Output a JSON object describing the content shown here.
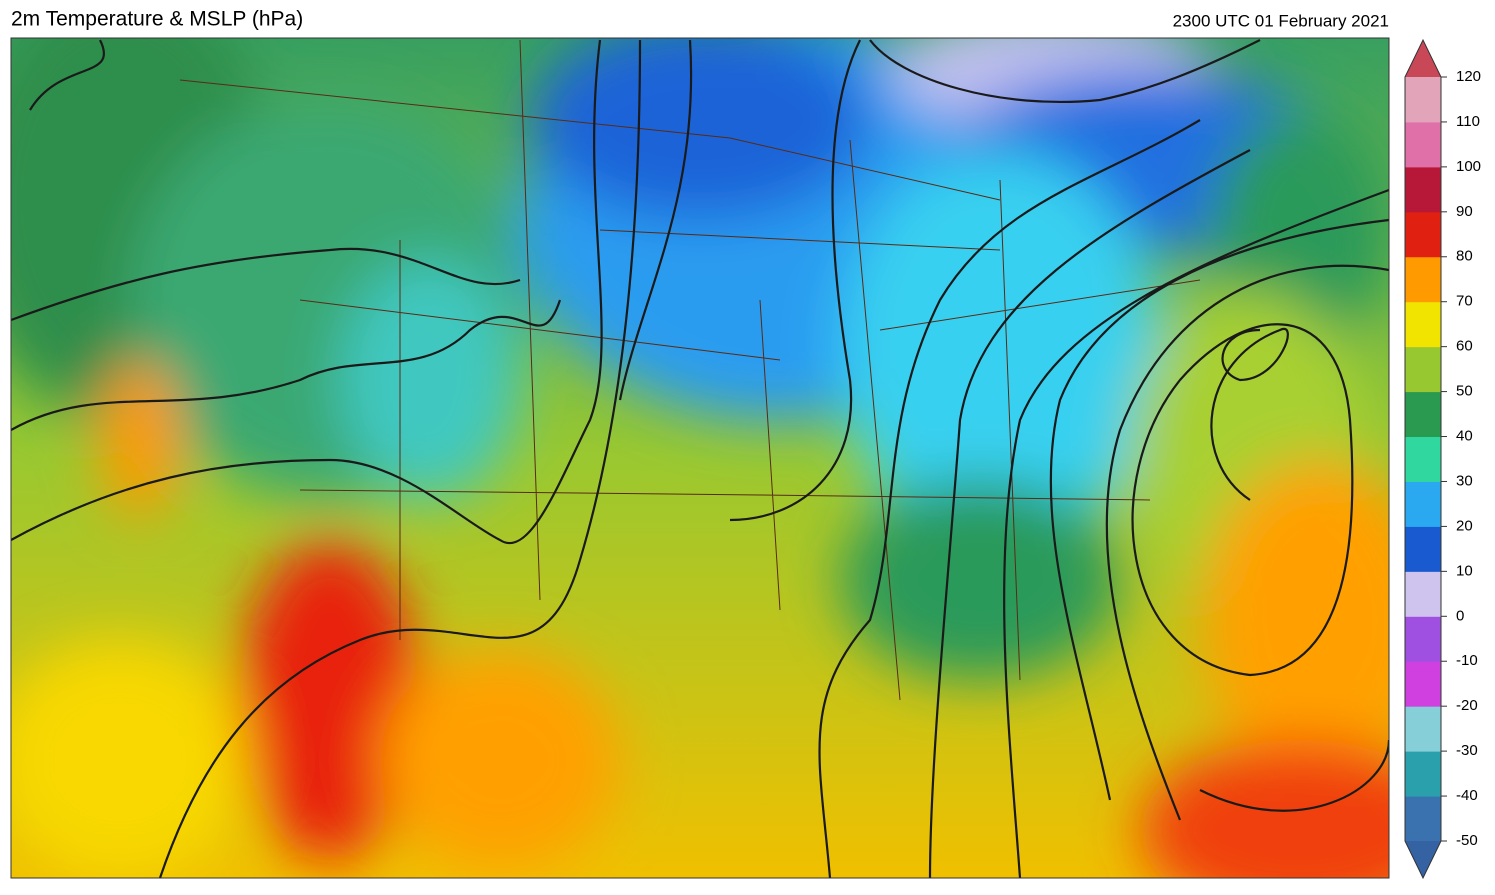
{
  "header": {
    "title": "2m Temperature & MSLP (hPa)",
    "valid_time": "2300 UTC 01 February 2021"
  },
  "colorbar": {
    "ticks": [
      120,
      110,
      100,
      90,
      80,
      70,
      60,
      50,
      40,
      30,
      20,
      10,
      0,
      -10,
      -20,
      -30,
      -40,
      -50
    ],
    "colors": [
      "#3a72b0",
      "#2aa0ac",
      "#86cfd8",
      "#d040e0",
      "#a050e0",
      "#cfc4ee",
      "#1a5ad0",
      "#2aa8f0",
      "#30d8a0",
      "#2a9a50",
      "#98c830",
      "#f0e400",
      "#ff9a00",
      "#e02010",
      "#b81838",
      "#e070a8",
      "#e2a4b8"
    ],
    "max_color": "#c84858",
    "min_color": "#3462a2"
  }
}
